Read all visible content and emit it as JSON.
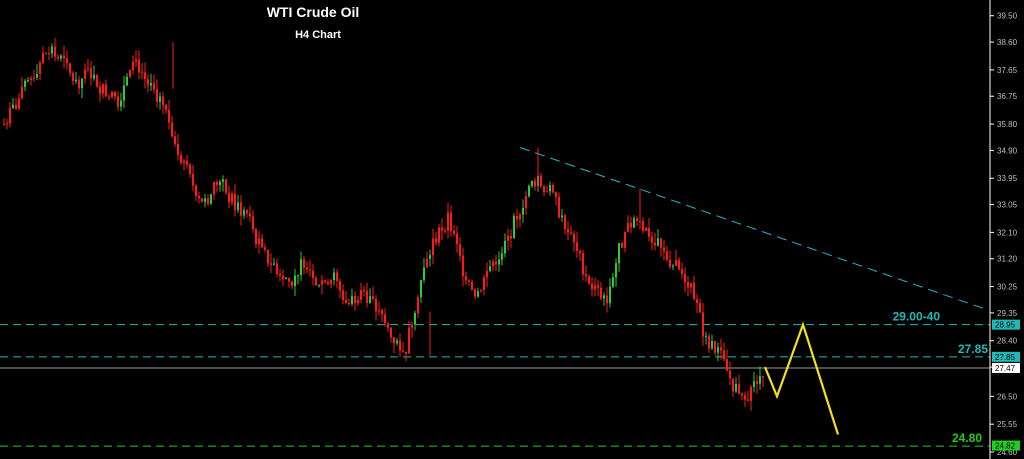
{
  "chart_data": {
    "type": "candlestick",
    "title": "WTI Crude Oil",
    "subtitle": "H4 Chart",
    "ylim": [
      24.6,
      39.9
    ],
    "y_ticks": [
      39.5,
      38.6,
      37.65,
      36.75,
      35.8,
      34.9,
      33.95,
      33.05,
      32.1,
      31.2,
      30.25,
      29.35,
      28.4,
      27.5,
      26.5,
      25.55,
      24.6
    ],
    "tick_color": "#bfbfbf",
    "colors": {
      "background": "#000000",
      "bear": "#ff1a1a",
      "bull": "#2ecc2e",
      "level_line": "#22b8b8",
      "support_line": "#22cc22",
      "trendline": "#22b8c8",
      "projection": "#f2e21e",
      "current_line": "#9a9a9a",
      "axis_line": "#ffffff"
    },
    "price_axis_tags": [
      {
        "value": 28.95,
        "label": "28.95",
        "color": "#22b8b8"
      },
      {
        "value": 27.85,
        "label": "27.85",
        "color": "#22b8b8"
      },
      {
        "value": 27.47,
        "label": "27.47",
        "color": "#ffffff"
      },
      {
        "value": 24.82,
        "label": "24.82",
        "color": "#22cc22"
      }
    ],
    "levels": [
      {
        "value": 28.95,
        "label": "29.00-40",
        "color": "#22b8b8",
        "style": "dashed"
      },
      {
        "value": 27.85,
        "label": "27.85",
        "color": "#22b8b8",
        "style": "dashed"
      },
      {
        "value": 24.8,
        "label": "24.80",
        "color": "#22cc22",
        "style": "dashed"
      }
    ],
    "current_price": 27.47,
    "trendline": {
      "start": [
        0.0,
        35.0
      ],
      "end": [
        1.0,
        29.45
      ]
    },
    "projection": [
      27.5,
      26.5,
      28.95,
      25.2
    ],
    "close_path": [
      35.8,
      36.6,
      37.5,
      38.3,
      38.0,
      37.2,
      37.6,
      36.9,
      36.6,
      38.2,
      37.2,
      36.6,
      35.2,
      33.9,
      33.1,
      33.9,
      33.1,
      32.7,
      31.4,
      30.9,
      30.4,
      31.2,
      30.4,
      30.6,
      29.6,
      30.2,
      29.5,
      28.6,
      28.0,
      30.3,
      31.8,
      32.6,
      30.9,
      30.0,
      31.0,
      31.6,
      32.9,
      33.9,
      33.6,
      32.6,
      31.4,
      30.3,
      29.7,
      31.6,
      32.6,
      32.1,
      31.4,
      30.9,
      30.3,
      28.4,
      27.9,
      26.8,
      26.6,
      27.4
    ]
  }
}
